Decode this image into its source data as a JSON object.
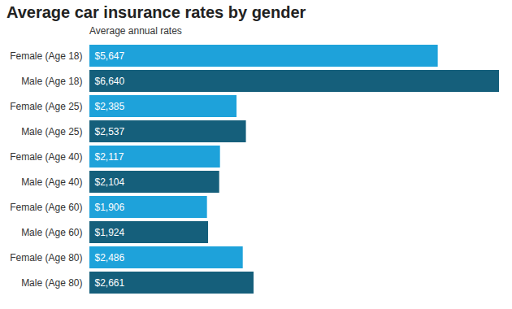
{
  "chart_data": {
    "type": "bar",
    "title": "Average car insurance rates by gender",
    "subtitle": "Average annual rates",
    "orientation": "horizontal",
    "categories": [
      "Female (Age 18)",
      "Male (Age 18)",
      "Female (Age 25)",
      "Male (Age 25)",
      "Female (Age 40)",
      "Male (Age 40)",
      "Female (Age 60)",
      "Male (Age 60)",
      "Female (Age 80)",
      "Male (Age 80)"
    ],
    "values": [
      5647,
      6640,
      2385,
      2537,
      2117,
      2104,
      1906,
      1924,
      2486,
      2661
    ],
    "value_labels": [
      "$5,647",
      "$6,640",
      "$2,385",
      "$2,537",
      "$2,117",
      "$2,104",
      "$1,906",
      "$1,924",
      "$2,486",
      "$2,661"
    ],
    "colors": [
      "#1ea2da",
      "#155f7b",
      "#1ea2da",
      "#155f7b",
      "#1ea2da",
      "#155f7b",
      "#1ea2da",
      "#155f7b",
      "#1ea2da",
      "#155f7b"
    ],
    "xlim": [
      0,
      6640
    ],
    "data_labels": true,
    "tick_labels": "y",
    "grid": false
  }
}
